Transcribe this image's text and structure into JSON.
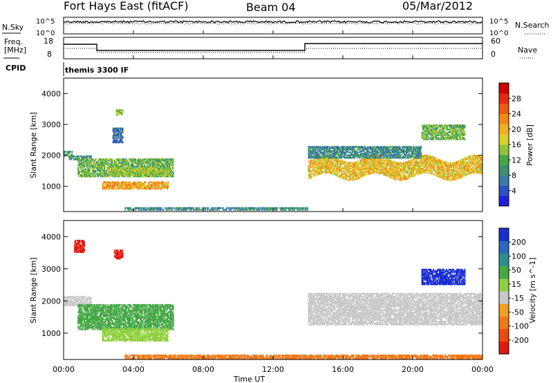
{
  "header": {
    "radar": "Fort Hays East (fitACF)",
    "beam": "Beam 04",
    "date": "05/Mar/2012"
  },
  "noise_panel": {
    "left_label": "N.Sky",
    "right_label": "N.Search",
    "left_ticks": [
      "10^5",
      "10^0"
    ],
    "right_ticks": [
      "10^5",
      "10^0"
    ]
  },
  "freq_panel": {
    "left_label_line1": "Freq.",
    "left_label_line2": "[MHz]",
    "left_ticks": [
      "18",
      "8"
    ],
    "right_label": "Nave",
    "right_ticks": [
      "60",
      "0"
    ]
  },
  "cpid": {
    "label": "CPID",
    "value": "themis 3300 IF"
  },
  "time_axis": {
    "label": "Time UT",
    "ticks": [
      "00:00",
      "04:00",
      "08:00",
      "12:00",
      "16:00",
      "20:00",
      "00:00"
    ]
  },
  "chart_data": [
    {
      "type": "heatmap",
      "title": "",
      "xlabel": "Time UT",
      "ylabel": "Slant Range [km]",
      "x_unit": "hours UT",
      "xlim": [
        0,
        24
      ],
      "ylim": [
        180,
        4500
      ],
      "y_ticks": [
        1000,
        2000,
        3000,
        4000
      ],
      "colorbar": {
        "label": "Power [dB]",
        "ticks": [
          "4",
          "8",
          "12",
          "16",
          "20",
          "24",
          "28"
        ],
        "range": [
          0,
          30
        ],
        "colors": [
          "#1f1fe0",
          "#2a52c8",
          "#3a7aa8",
          "#3c8f6e",
          "#45a845",
          "#8fc43a",
          "#d8d230",
          "#f0b020",
          "#f08a14",
          "#ee5a10",
          "#e62a10",
          "#d00000"
        ]
      },
      "regions": [
        {
          "name": "ground scatter early",
          "t_start": 0.3,
          "t_end": 1.6,
          "range_km": [
            1850,
            2000
          ],
          "value": 8
        },
        {
          "name": "near-range echoes",
          "t_start": 0.0,
          "t_end": 0.5,
          "range_km": [
            1950,
            2150
          ],
          "value": 10
        },
        {
          "name": "descending band",
          "t_start": 0.8,
          "t_end": 6.3,
          "range_km": [
            1300,
            1900
          ],
          "value": 12
        },
        {
          "name": "main lower band",
          "t_start": 2.2,
          "t_end": 6.0,
          "range_km": [
            900,
            1150
          ],
          "value": 20
        },
        {
          "name": "upper band",
          "t_start": 2.5,
          "t_end": 6.0,
          "range_km": [
            1350,
            1600
          ],
          "value": 14
        },
        {
          "name": "patch",
          "t_start": 3.0,
          "t_end": 3.4,
          "range_km": [
            3300,
            3500
          ],
          "value": 12
        },
        {
          "name": "scattered",
          "t_start": 2.8,
          "t_end": 3.4,
          "range_km": [
            2400,
            2900
          ],
          "value": 6
        },
        {
          "name": "near range floor",
          "t_start": 3.5,
          "t_end": 14.0,
          "range_km": [
            220,
            330
          ],
          "value": 8
        },
        {
          "name": "afternoon wavy band",
          "t_start": 14.0,
          "t_end": 24.0,
          "range_km": [
            1300,
            1900
          ],
          "value": 18
        },
        {
          "name": "afternoon outer band",
          "t_start": 14.0,
          "t_end": 20.5,
          "range_km": [
            1900,
            2300
          ],
          "value": 8
        },
        {
          "name": "late upper patch",
          "t_start": 20.5,
          "t_end": 23.0,
          "range_km": [
            2500,
            3000
          ],
          "value": 12
        }
      ]
    },
    {
      "type": "heatmap",
      "title": "",
      "xlabel": "Time UT",
      "ylabel": "Slant Range [km]",
      "x_unit": "hours UT",
      "xlim": [
        0,
        24
      ],
      "ylim": [
        180,
        4500
      ],
      "y_ticks": [
        1000,
        2000,
        3000,
        4000
      ],
      "colorbar": {
        "label": "Velocity [m s^-1]",
        "ticks": [
          "200",
          "100",
          "50",
          "15",
          "-15",
          "-50",
          "-100",
          "-200"
        ],
        "colors": [
          "#1a2fd0",
          "#2a6ac0",
          "#2e8f8a",
          "#45a845",
          "#90d040",
          "#c8c8c8",
          "#f0a020",
          "#f07818",
          "#ee4a12",
          "#e01a10"
        ]
      },
      "regions": [
        {
          "name": "early ground scatter",
          "t_start": 0.0,
          "t_end": 1.6,
          "range_km": [
            1850,
            2150
          ],
          "value": 0
        },
        {
          "name": "red patch early",
          "t_start": 0.6,
          "t_end": 1.2,
          "range_km": [
            3500,
            3900
          ],
          "value": -200
        },
        {
          "name": "red patch 3h",
          "t_start": 2.9,
          "t_end": 3.4,
          "range_km": [
            3300,
            3600
          ],
          "value": -200
        },
        {
          "name": "green descending band",
          "t_start": 0.8,
          "t_end": 6.3,
          "range_km": [
            1100,
            1900
          ],
          "value": 60
        },
        {
          "name": "light green lower",
          "t_start": 2.2,
          "t_end": 6.0,
          "range_km": [
            750,
            1150
          ],
          "value": 20
        },
        {
          "name": "near range orange",
          "t_start": 3.5,
          "t_end": 24.0,
          "range_km": [
            200,
            330
          ],
          "value": -60
        },
        {
          "name": "afternoon ground scatter",
          "t_start": 14.0,
          "t_end": 24.0,
          "range_km": [
            1250,
            2250
          ],
          "value": 0
        },
        {
          "name": "late blue patch",
          "t_start": 20.5,
          "t_end": 23.0,
          "range_km": [
            2500,
            3000
          ],
          "value": 200
        }
      ]
    }
  ],
  "colors": {
    "axis": "#000000",
    "background": "#ffffff",
    "ground_scatter": "#c8c8c8"
  }
}
